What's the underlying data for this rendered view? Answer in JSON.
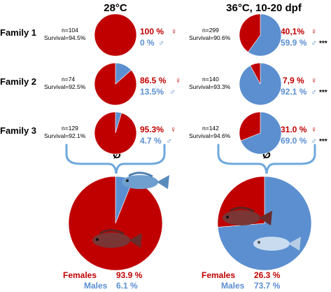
{
  "colors": {
    "female": "#c00000",
    "male": "#5b8fd0",
    "text": "#000000",
    "bracket": "#6fa8dc"
  },
  "chart_data": {
    "type": "pie",
    "conditions": [
      "28°C",
      "36°C, 10-20 dpf"
    ],
    "mean_symbol": "Ø",
    "female_symbol": "♀",
    "male_symbol": "♂",
    "families": [
      {
        "name": "Family 1",
        "groups": [
          {
            "n": "n=104",
            "survival": "Survival=94.5%",
            "female_pct": 100,
            "male_pct": 0,
            "female_label": "100 %",
            "male_label": "0 %",
            "significance": ""
          },
          {
            "n": "n=299",
            "survival": "Survival=90.6%",
            "female_pct": 40.1,
            "male_pct": 59.9,
            "female_label": "40,1%",
            "male_label": "59.9 %",
            "significance": "***"
          }
        ]
      },
      {
        "name": "Family 2",
        "groups": [
          {
            "n": "n=74",
            "survival": "Survival=92.5%",
            "female_pct": 86.5,
            "male_pct": 13.5,
            "female_label": "86.5 %",
            "male_label": "13.5%",
            "significance": ""
          },
          {
            "n": "n=140",
            "survival": "Survival=93.3%",
            "female_pct": 7.9,
            "male_pct": 92.1,
            "female_label": "7,9 %",
            "male_label": "92.1 %",
            "significance": "***"
          }
        ]
      },
      {
        "name": "Family 3",
        "groups": [
          {
            "n": "n=129",
            "survival": "Survival=92.1%",
            "female_pct": 95.3,
            "male_pct": 4.7,
            "female_label": "95.3%",
            "male_label": "4.7 %",
            "significance": ""
          },
          {
            "n": "n=142",
            "survival": "Survival=94.6%",
            "female_pct": 31.0,
            "male_pct": 69.0,
            "female_label": "31.0 %",
            "male_label": "69.0 %",
            "significance": "***"
          }
        ]
      }
    ],
    "means": [
      {
        "female_pct": 93.9,
        "male_pct": 6.1,
        "female_text": "Females",
        "male_text": "Males",
        "female_label": "93.9 %",
        "male_label": "6.1 %"
      },
      {
        "female_pct": 26.3,
        "male_pct": 73.7,
        "female_text": "Females",
        "male_text": "Males",
        "female_label": "26.3 %",
        "male_label": "73.7 %"
      }
    ]
  }
}
